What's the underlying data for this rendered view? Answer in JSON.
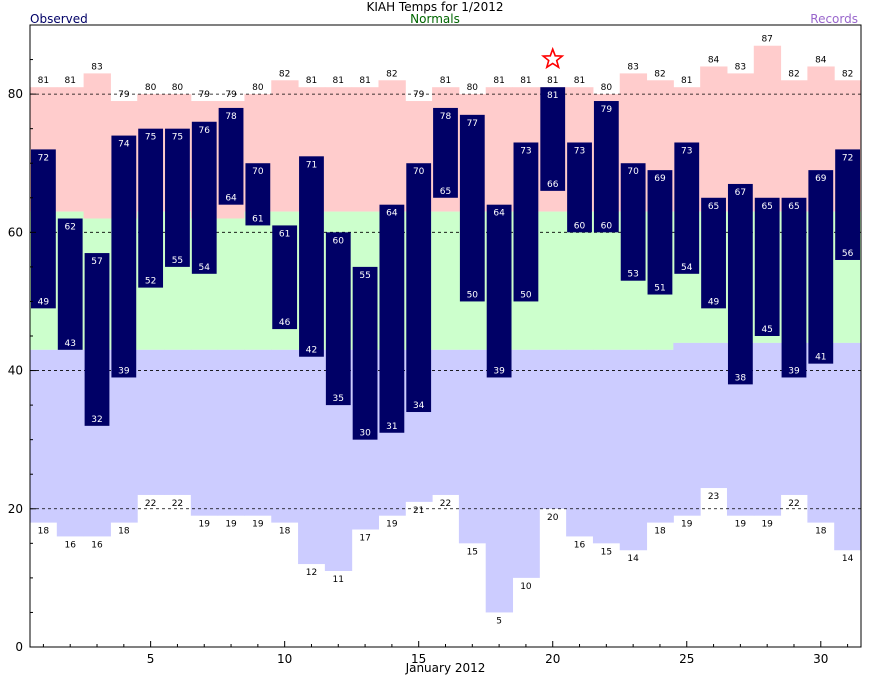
{
  "header": {
    "title": "KIAH Temps for 1/2012",
    "observed_label": "Observed",
    "normals_label": "Normals",
    "records_label": "Records"
  },
  "colors": {
    "observed": "#000066",
    "normals_text": "#006600",
    "records_text": "#9966cc",
    "record_high_band": "#ffcccc",
    "normal_band": "#ccffcc",
    "record_low_band": "#ccccff",
    "record_star": "#ff0000"
  },
  "chart_data": {
    "type": "bar",
    "title": "KIAH Temps for 1/2012",
    "xlabel": "January 2012",
    "ylabel": "",
    "days": [
      1,
      2,
      3,
      4,
      5,
      6,
      7,
      8,
      9,
      10,
      11,
      12,
      13,
      14,
      15,
      16,
      17,
      18,
      19,
      20,
      21,
      22,
      23,
      24,
      25,
      26,
      27,
      28,
      29,
      30,
      31
    ],
    "x_ticks": [
      5,
      10,
      15,
      20,
      25,
      30
    ],
    "y_ticks": [
      0,
      20,
      40,
      60,
      80
    ],
    "ylim": [
      0,
      90
    ],
    "grid": "dashed at y ticks",
    "observed_high": [
      72,
      62,
      57,
      74,
      75,
      75,
      76,
      78,
      70,
      61,
      71,
      60,
      55,
      64,
      70,
      78,
      77,
      64,
      73,
      81,
      73,
      79,
      70,
      69,
      73,
      65,
      67,
      65,
      65,
      69,
      72
    ],
    "observed_low": [
      49,
      43,
      32,
      39,
      52,
      55,
      54,
      64,
      61,
      46,
      42,
      35,
      30,
      31,
      34,
      65,
      50,
      39,
      50,
      66,
      60,
      60,
      53,
      51,
      54,
      49,
      38,
      45,
      39,
      41,
      56
    ],
    "normal_high": [
      63,
      63,
      62,
      62,
      63,
      63,
      62,
      62,
      63,
      63,
      63,
      63,
      63,
      63,
      63,
      63,
      63,
      63,
      63,
      63,
      63,
      63,
      63,
      63,
      63,
      63,
      63,
      63,
      63,
      63,
      63
    ],
    "normal_low": [
      43,
      43,
      43,
      43,
      43,
      43,
      43,
      43,
      43,
      43,
      43,
      43,
      43,
      43,
      43,
      43,
      43,
      43,
      43,
      43,
      43,
      43,
      43,
      43,
      44,
      44,
      44,
      44,
      44,
      44,
      44
    ],
    "record_high": [
      81,
      81,
      83,
      79,
      80,
      80,
      79,
      79,
      80,
      82,
      81,
      81,
      81,
      82,
      79,
      81,
      80,
      81,
      81,
      81,
      81,
      80,
      83,
      82,
      81,
      84,
      83,
      87,
      82,
      84,
      82
    ],
    "record_low": [
      18,
      16,
      16,
      18,
      22,
      22,
      19,
      19,
      19,
      18,
      12,
      11,
      17,
      19,
      21,
      22,
      15,
      5,
      10,
      20,
      16,
      15,
      14,
      18,
      19,
      23,
      19,
      19,
      22,
      18,
      14
    ],
    "record_set_days": [
      20
    ]
  }
}
